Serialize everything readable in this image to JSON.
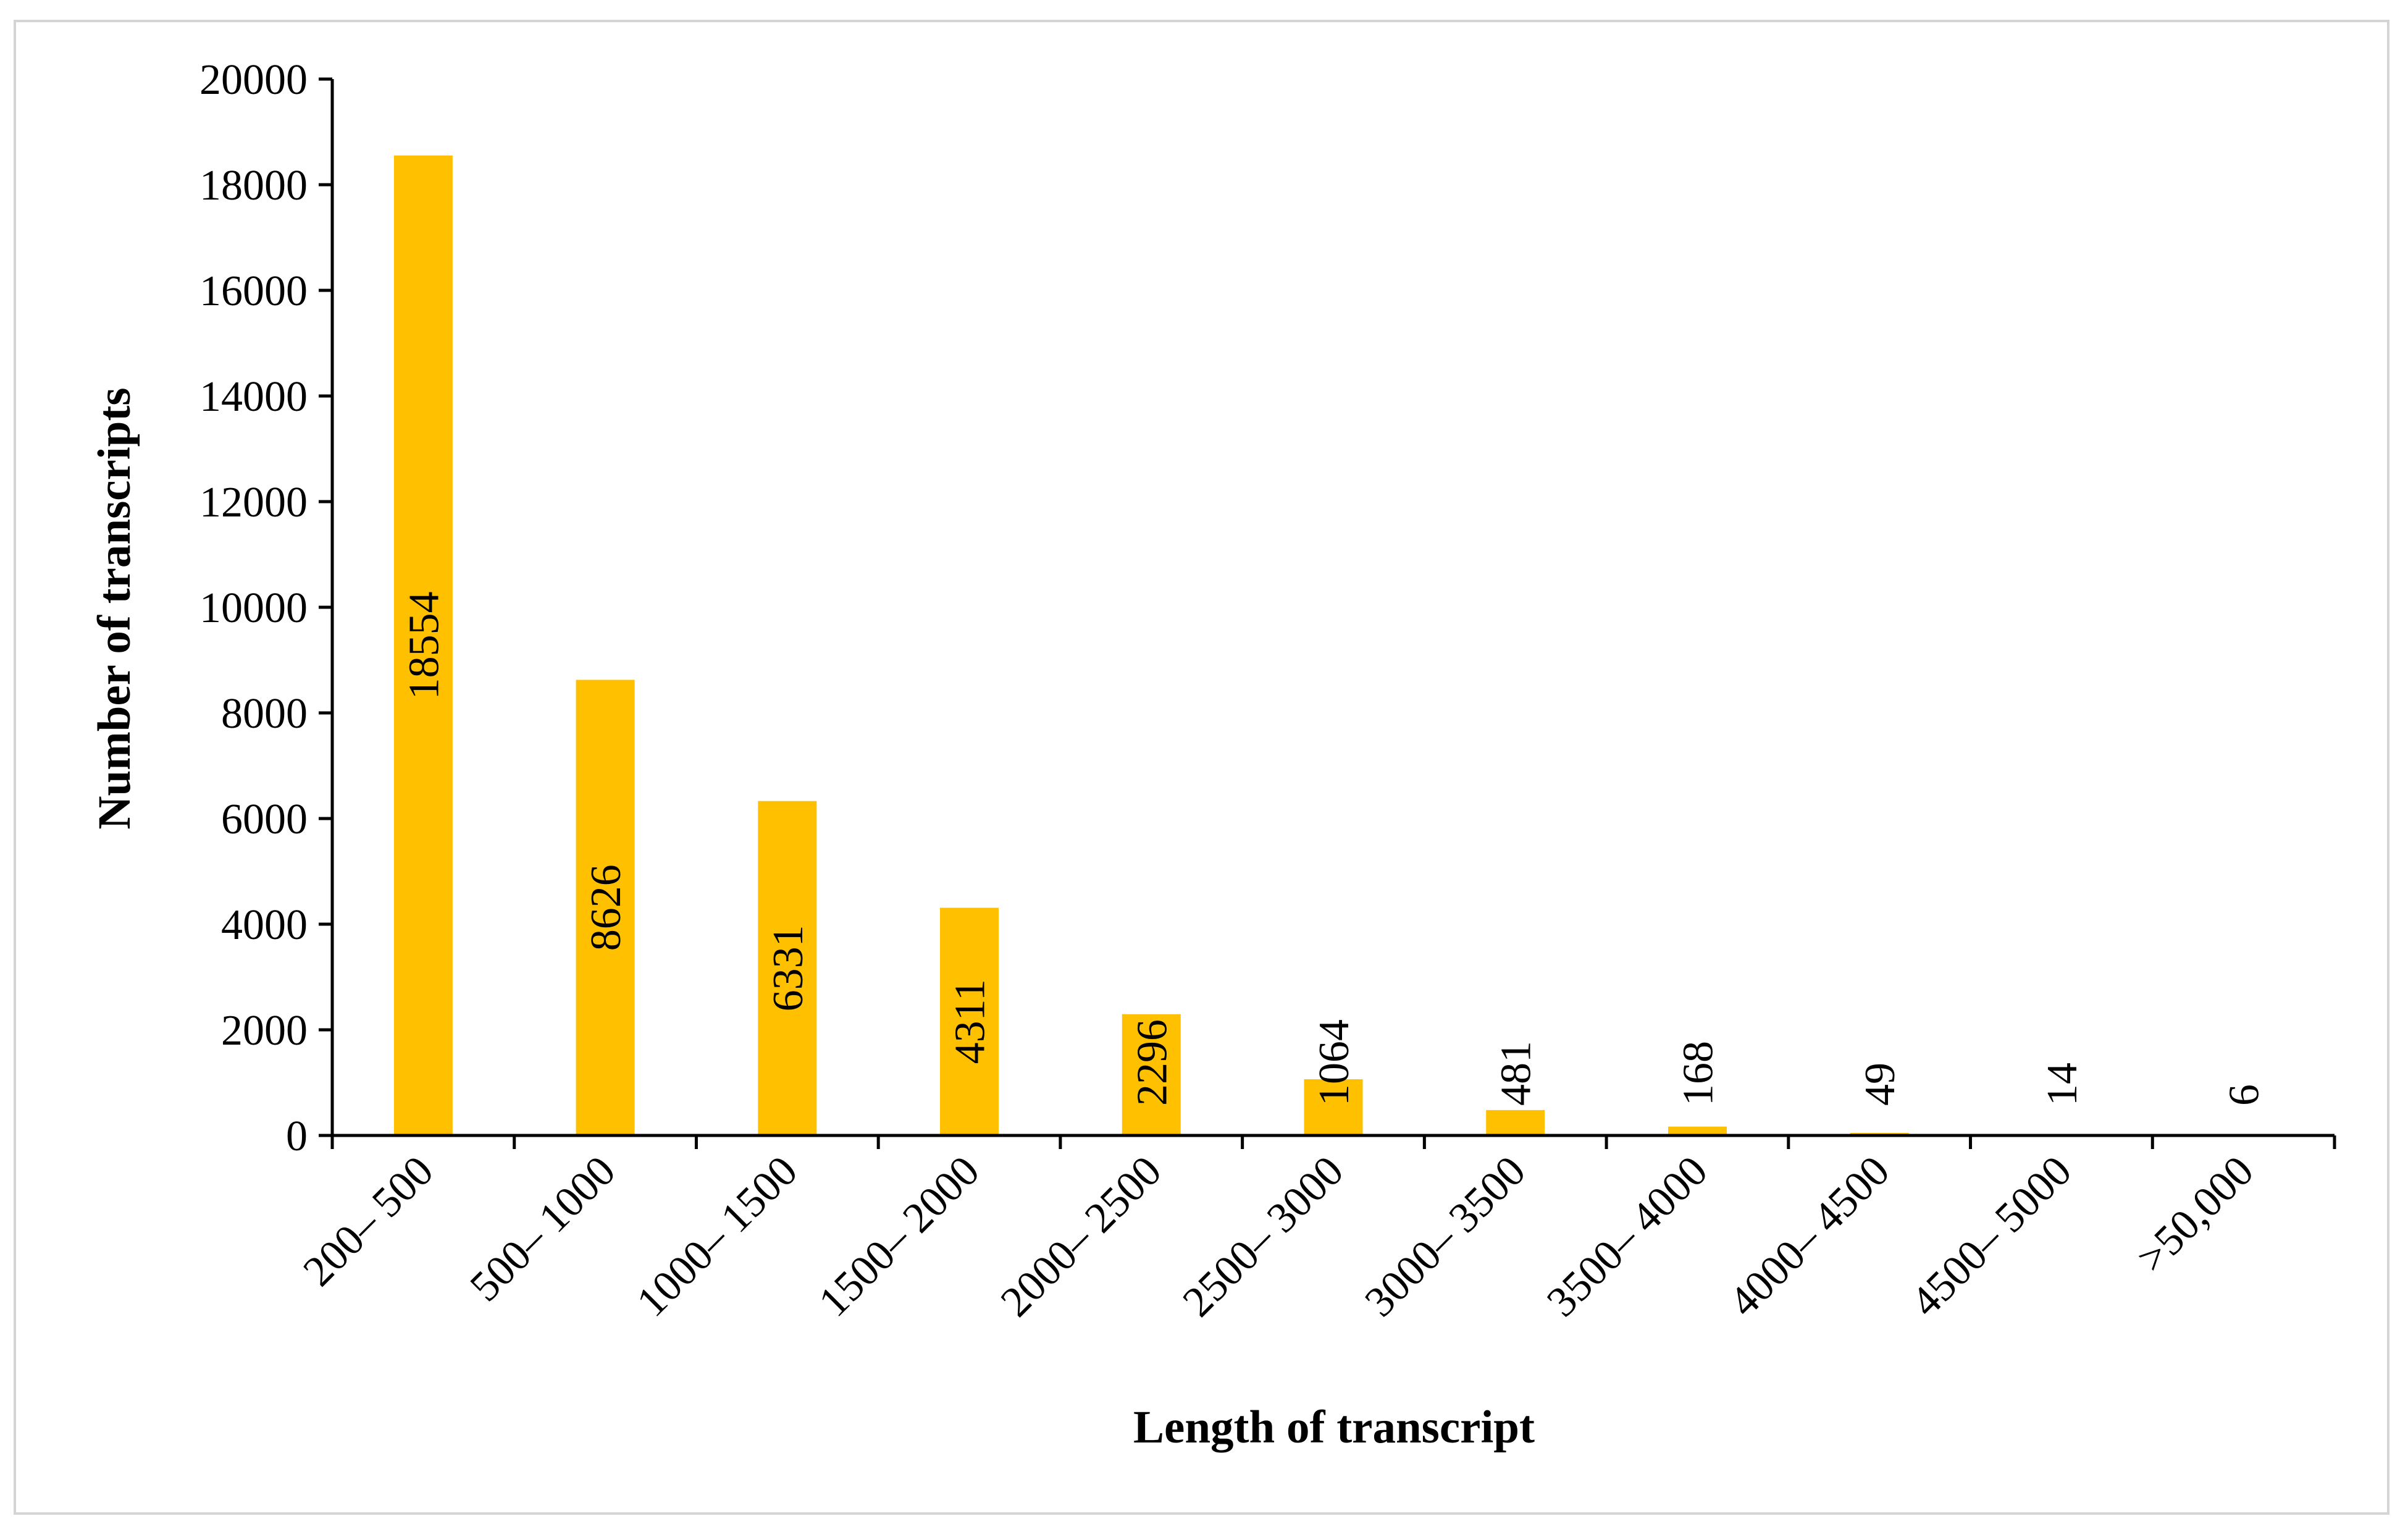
{
  "chart_data": {
    "type": "bar",
    "title": "",
    "xlabel": "Length of transcript",
    "ylabel": "Number of transcripts",
    "categories": [
      "200– 500",
      "500– 1000",
      "1000– 1500",
      "1500– 2000",
      "2000– 2500",
      "2500– 3000",
      "3000– 3500",
      "3500– 4000",
      "4000– 4500",
      "4500– 5000",
      ">50,000"
    ],
    "values": [
      18554,
      8626,
      6331,
      4311,
      2296,
      1064,
      481,
      168,
      49,
      14,
      6
    ],
    "data_labels": [
      "18554",
      "8626",
      "6331",
      "4311",
      "2296",
      "1064",
      "481",
      "168",
      "49",
      "14",
      "6"
    ],
    "ylim": [
      0,
      20000
    ],
    "yticks": [
      0,
      2000,
      4000,
      6000,
      8000,
      10000,
      12000,
      14000,
      16000,
      18000,
      20000
    ],
    "grid": false,
    "legend": "none",
    "bar_color": "#FFC000"
  }
}
